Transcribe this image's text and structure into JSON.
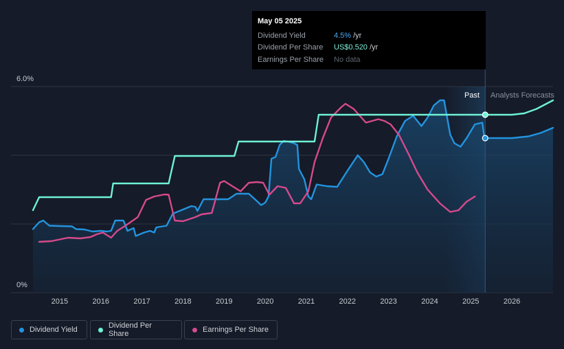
{
  "tooltip": {
    "date": "May 05 2025",
    "rows": [
      {
        "label": "Dividend Yield",
        "value": "4.5%",
        "unit": "/yr"
      },
      {
        "label": "Dividend Per Share",
        "value": "US$0.520",
        "unit": "/yr"
      },
      {
        "label": "Earnings Per Share",
        "value": "No data",
        "unit": ""
      }
    ]
  },
  "legend": {
    "dividend_yield": "Dividend Yield",
    "dividend_per_share": "Dividend Per Share",
    "earnings_per_share": "Earnings Per Share"
  },
  "colors": {
    "background": "#151b28",
    "dividend_yield": "#2394df",
    "dividend_per_share": "#6ef2d6",
    "earnings_per_share": "#d64a8c",
    "grid": "#2e3442"
  },
  "chart_data": {
    "type": "line",
    "ylim": [
      0,
      6.0
    ],
    "y_tick_labels": [
      "6.0%",
      "0%"
    ],
    "x_tick_labels": [
      "2015",
      "2016",
      "2017",
      "2018",
      "2019",
      "2020",
      "2021",
      "2022",
      "2023",
      "2024",
      "2025",
      "2026"
    ],
    "xlim": [
      2014.35,
      2027.0
    ],
    "past_label": "Past",
    "forecast_label": "Analysts Forecasts",
    "past_region": [
      2024.35,
      2025.35
    ],
    "divider_date": 2025.35,
    "series": [
      {
        "name": "Dividend Yield",
        "unit": "%",
        "points": [
          [
            2014.35,
            1.85
          ],
          [
            2014.5,
            2.05
          ],
          [
            2014.6,
            2.1
          ],
          [
            2014.75,
            1.95
          ],
          [
            2015.0,
            1.94
          ],
          [
            2015.3,
            1.93
          ],
          [
            2015.4,
            1.85
          ],
          [
            2015.6,
            1.84
          ],
          [
            2015.8,
            1.78
          ],
          [
            2016.0,
            1.8
          ],
          [
            2016.15,
            1.78
          ],
          [
            2016.25,
            1.8
          ],
          [
            2016.35,
            2.1
          ],
          [
            2016.55,
            2.1
          ],
          [
            2016.65,
            1.8
          ],
          [
            2016.8,
            1.88
          ],
          [
            2016.85,
            1.65
          ],
          [
            2017.05,
            1.75
          ],
          [
            2017.2,
            1.8
          ],
          [
            2017.3,
            1.75
          ],
          [
            2017.35,
            1.9
          ],
          [
            2017.6,
            1.95
          ],
          [
            2017.75,
            2.3
          ],
          [
            2018.0,
            2.42
          ],
          [
            2018.2,
            2.52
          ],
          [
            2018.3,
            2.5
          ],
          [
            2018.35,
            2.38
          ],
          [
            2018.5,
            2.72
          ],
          [
            2018.6,
            2.72
          ],
          [
            2018.75,
            2.72
          ],
          [
            2019.1,
            2.72
          ],
          [
            2019.3,
            2.88
          ],
          [
            2019.6,
            2.88
          ],
          [
            2019.75,
            2.72
          ],
          [
            2019.9,
            2.55
          ],
          [
            2020.0,
            2.62
          ],
          [
            2020.08,
            2.8
          ],
          [
            2020.15,
            3.9
          ],
          [
            2020.25,
            3.95
          ],
          [
            2020.35,
            4.3
          ],
          [
            2020.45,
            4.42
          ],
          [
            2020.55,
            4.4
          ],
          [
            2020.7,
            4.35
          ],
          [
            2020.78,
            4.3
          ],
          [
            2020.82,
            3.6
          ],
          [
            2020.95,
            3.3
          ],
          [
            2021.05,
            2.8
          ],
          [
            2021.12,
            2.72
          ],
          [
            2021.25,
            3.15
          ],
          [
            2021.5,
            3.1
          ],
          [
            2021.75,
            3.08
          ],
          [
            2022.0,
            3.55
          ],
          [
            2022.25,
            4.0
          ],
          [
            2022.4,
            3.8
          ],
          [
            2022.55,
            3.5
          ],
          [
            2022.7,
            3.38
          ],
          [
            2022.85,
            3.45
          ],
          [
            2023.0,
            3.9
          ],
          [
            2023.2,
            4.55
          ],
          [
            2023.4,
            5.0
          ],
          [
            2023.6,
            5.15
          ],
          [
            2023.8,
            4.85
          ],
          [
            2023.95,
            5.1
          ],
          [
            2024.1,
            5.45
          ],
          [
            2024.25,
            5.6
          ],
          [
            2024.35,
            5.6
          ],
          [
            2024.5,
            4.6
          ],
          [
            2024.6,
            4.35
          ],
          [
            2024.75,
            4.25
          ],
          [
            2024.9,
            4.5
          ],
          [
            2025.1,
            4.9
          ],
          [
            2025.28,
            4.95
          ],
          [
            2025.33,
            4.5
          ],
          [
            2025.5,
            4.5
          ],
          [
            2025.8,
            4.5
          ],
          [
            2026.0,
            4.5
          ],
          [
            2026.4,
            4.55
          ],
          [
            2026.7,
            4.65
          ],
          [
            2027.0,
            4.8
          ]
        ]
      },
      {
        "name": "Dividend Per Share",
        "unit": "US$",
        "points": [
          [
            2014.35,
            2.4
          ],
          [
            2014.5,
            2.78
          ],
          [
            2016.25,
            2.78
          ],
          [
            2016.3,
            3.18
          ],
          [
            2017.65,
            3.18
          ],
          [
            2017.8,
            3.98
          ],
          [
            2019.25,
            3.98
          ],
          [
            2019.35,
            4.4
          ],
          [
            2021.2,
            4.4
          ],
          [
            2021.3,
            5.18
          ],
          [
            2025.35,
            5.18
          ],
          [
            2026.0,
            5.18
          ],
          [
            2026.3,
            5.22
          ],
          [
            2026.6,
            5.35
          ],
          [
            2027.0,
            5.6
          ]
        ]
      },
      {
        "name": "Earnings Per Share",
        "unit": "US$",
        "points": [
          [
            2014.5,
            1.48
          ],
          [
            2014.8,
            1.5
          ],
          [
            2015.2,
            1.6
          ],
          [
            2015.5,
            1.58
          ],
          [
            2015.75,
            1.62
          ],
          [
            2015.9,
            1.7
          ],
          [
            2016.05,
            1.75
          ],
          [
            2016.25,
            1.6
          ],
          [
            2016.4,
            1.8
          ],
          [
            2016.6,
            1.95
          ],
          [
            2016.9,
            2.2
          ],
          [
            2017.1,
            2.7
          ],
          [
            2017.3,
            2.8
          ],
          [
            2017.55,
            2.86
          ],
          [
            2017.65,
            2.85
          ],
          [
            2017.8,
            2.1
          ],
          [
            2018.0,
            2.08
          ],
          [
            2018.3,
            2.2
          ],
          [
            2018.45,
            2.28
          ],
          [
            2018.7,
            2.32
          ],
          [
            2018.9,
            3.2
          ],
          [
            2019.0,
            3.25
          ],
          [
            2019.2,
            3.1
          ],
          [
            2019.4,
            2.95
          ],
          [
            2019.6,
            3.2
          ],
          [
            2019.8,
            3.22
          ],
          [
            2019.95,
            3.2
          ],
          [
            2020.1,
            2.85
          ],
          [
            2020.3,
            3.1
          ],
          [
            2020.5,
            3.05
          ],
          [
            2020.7,
            2.6
          ],
          [
            2020.85,
            2.6
          ],
          [
            2021.05,
            2.95
          ],
          [
            2021.2,
            3.8
          ],
          [
            2021.4,
            4.5
          ],
          [
            2021.6,
            5.1
          ],
          [
            2021.85,
            5.4
          ],
          [
            2021.95,
            5.5
          ],
          [
            2022.15,
            5.35
          ],
          [
            2022.45,
            4.95
          ],
          [
            2022.6,
            5.0
          ],
          [
            2022.75,
            5.05
          ],
          [
            2022.9,
            5.0
          ],
          [
            2023.05,
            4.9
          ],
          [
            2023.25,
            4.6
          ],
          [
            2023.5,
            4.0
          ],
          [
            2023.7,
            3.5
          ],
          [
            2023.95,
            3.0
          ],
          [
            2024.25,
            2.6
          ],
          [
            2024.5,
            2.35
          ],
          [
            2024.7,
            2.4
          ],
          [
            2024.9,
            2.65
          ],
          [
            2025.1,
            2.8
          ]
        ]
      }
    ],
    "markers": [
      {
        "series": "Dividend Per Share",
        "x": 2025.35,
        "y": 5.18
      },
      {
        "series": "Dividend Yield",
        "x": 2025.35,
        "y": 4.5
      }
    ]
  }
}
